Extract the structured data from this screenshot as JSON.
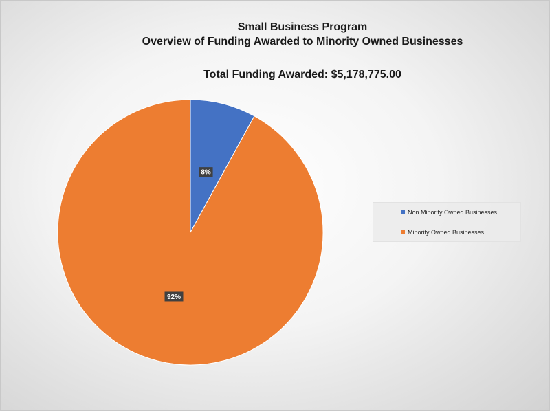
{
  "chart_data": {
    "type": "pie",
    "title": "Small Business Program",
    "subtitle": "Overview of Funding Awarded to Minority Owned Businesses",
    "total_label": "Total Funding Awarded: $5,178,775.00",
    "legend_position": "right",
    "slices": [
      {
        "name": "Non Minority Owned Businesses",
        "value": 8,
        "label": "8%",
        "color": "#4472C4"
      },
      {
        "name": "Minority Owned Businesses",
        "value": 92,
        "label": "92%",
        "color": "#ED7D31"
      }
    ]
  }
}
